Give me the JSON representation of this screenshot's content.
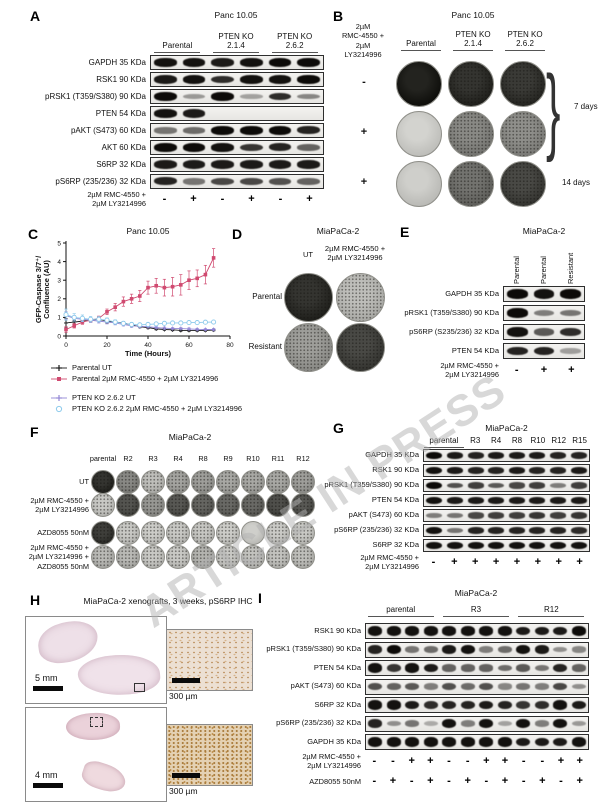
{
  "watermark": "ARTICLE IN PRESS",
  "panelA": {
    "label": "A",
    "title": "Panc 10.05",
    "group_headers": [
      {
        "lines": [
          "Parental"
        ],
        "span": 2,
        "underline": true
      },
      {
        "lines": [
          "PTEN KO",
          "2.1.4"
        ],
        "span": 2,
        "underline": true
      },
      {
        "lines": [
          "PTEN KO",
          "2.6.2"
        ],
        "span": 2,
        "underline": true
      }
    ],
    "rows": [
      {
        "label": "GAPDH 35 KDa",
        "bands": [
          0.9,
          0.9,
          0.85,
          0.9,
          0.95,
          1
        ]
      },
      {
        "label": "RSK1 90 KDa",
        "bands": [
          0.85,
          0.9,
          0.75,
          0.9,
          0.9,
          0.95
        ]
      },
      {
        "label": "pRSK1 (T359/S380) 90 KDa",
        "bands": [
          1,
          0.15,
          0.95,
          0.1,
          0.75,
          0.25
        ]
      },
      {
        "label": "PTEN 54 KDa",
        "bands": [
          0.9,
          0.85,
          0,
          0,
          0,
          0
        ]
      },
      {
        "label": "pAKT (S473) 60 KDa",
        "bands": [
          0.35,
          0.4,
          1,
          0.95,
          1,
          0.8
        ]
      },
      {
        "label": "AKT 60 KDa",
        "bands": [
          0.95,
          0.95,
          0.9,
          0.7,
          0.8,
          0.45
        ]
      },
      {
        "label": "S6RP 32 KDa",
        "bands": [
          0.85,
          0.85,
          0.85,
          0.85,
          0.85,
          0.85
        ]
      },
      {
        "label": "pS6RP (235/236) 32 KDa",
        "bands": [
          0.8,
          0.35,
          0.6,
          0.6,
          0.55,
          0.45
        ]
      }
    ],
    "treatment_rows": [
      {
        "label": "2µM RMC-4550 +\n2µM LY3214996",
        "signs": [
          "-",
          "+",
          "-",
          "+",
          "-",
          "+"
        ]
      }
    ]
  },
  "panelB": {
    "label": "B",
    "title": "Panc 10.05",
    "treatment_label": "2µM\nRMC-4550 +\n2µM\nLY3214996",
    "col_headers": [
      {
        "lines": [
          "Parental"
        ],
        "span": 1,
        "underline": true
      },
      {
        "lines": [
          "PTEN KO",
          "2.1.4"
        ],
        "span": 1,
        "underline": true
      },
      {
        "lines": [
          "PTEN KO",
          "2.6.2"
        ],
        "span": 1,
        "underline": true
      }
    ],
    "rows": [
      {
        "sign": "-",
        "shades": [
          0.93,
          0.85,
          0.82
        ]
      },
      {
        "sign": "+",
        "shades": [
          0.1,
          0.45,
          0.42
        ]
      },
      {
        "sign": "+",
        "shades": [
          0.12,
          0.55,
          0.75
        ]
      }
    ],
    "brackets": [
      {
        "text": "7 days"
      },
      {
        "text": "14 days"
      }
    ]
  },
  "panelC": {
    "label": "C",
    "title": "Panc 10.05"
  },
  "chart_data": {
    "type": "line",
    "title": "Panc 10.05",
    "xlabel": "Time (Hours)",
    "ylabel_lines": [
      "GFP-Caspase 3/7⁺/",
      "Confluence (AU)"
    ],
    "xlim": [
      0,
      80
    ],
    "ylim": [
      0,
      5
    ],
    "xticks": [
      0,
      20,
      40,
      60,
      80
    ],
    "yticks": [
      0,
      1,
      2,
      3,
      4,
      5
    ],
    "grid": false,
    "legend_position": "below",
    "x": [
      0,
      4,
      8,
      12,
      16,
      20,
      24,
      28,
      32,
      36,
      40,
      44,
      48,
      52,
      56,
      60,
      64,
      68,
      72
    ],
    "series": [
      {
        "name": "Parental UT",
        "color": "#1a1a1a",
        "marker": "plus",
        "values": [
          0.7,
          0.75,
          0.8,
          0.85,
          0.9,
          0.8,
          0.75,
          0.7,
          0.6,
          0.5,
          0.45,
          0.38,
          0.35,
          0.33,
          0.3,
          0.3,
          0.3,
          0.3,
          0.32
        ],
        "err": [
          0.25,
          0.1,
          0.1,
          0.1,
          0.1,
          0.1,
          0.08,
          0.08,
          0.08,
          0.06,
          0.06,
          0.05,
          0.05,
          0.05,
          0.05,
          0.05,
          0.05,
          0.05,
          0.05
        ]
      },
      {
        "name": "Parental 2µM RMC-4550 + 2µM LY3214996",
        "color": "#d04a70",
        "marker": "square",
        "values": [
          0.35,
          0.55,
          0.75,
          0.85,
          0.95,
          1.3,
          1.55,
          1.85,
          2.0,
          2.15,
          2.6,
          2.7,
          2.6,
          2.65,
          2.75,
          3.0,
          3.1,
          3.3,
          4.2
        ],
        "err": [
          0.15,
          0.12,
          0.12,
          0.12,
          0.12,
          0.15,
          0.2,
          0.25,
          0.25,
          0.3,
          0.35,
          0.4,
          0.45,
          0.5,
          0.55,
          0.5,
          0.45,
          0.5,
          0.5
        ]
      },
      {
        "name": "PTEN KO 2.6.2 UT",
        "color": "#9287d6",
        "marker": "plus",
        "values": [
          1.1,
          0.95,
          0.9,
          0.85,
          0.8,
          0.75,
          0.7,
          0.62,
          0.55,
          0.52,
          0.5,
          0.45,
          0.42,
          0.4,
          0.4,
          0.38,
          0.36,
          0.35,
          0.35
        ],
        "err": [
          0.2,
          0.15,
          0.12,
          0.12,
          0.1,
          0.1,
          0.1,
          0.08,
          0.08,
          0.08,
          0.06,
          0.06,
          0.06,
          0.05,
          0.05,
          0.05,
          0.05,
          0.05,
          0.05
        ]
      },
      {
        "name": "PTEN KO 2.6.2 2µM RMC-4550 + 2µM LY3214996",
        "color": "#8ecbec",
        "marker": "circle-open",
        "values": [
          1.15,
          1.0,
          0.95,
          0.9,
          0.9,
          0.85,
          0.75,
          0.68,
          0.62,
          0.6,
          0.62,
          0.65,
          0.68,
          0.7,
          0.7,
          0.72,
          0.72,
          0.74,
          0.75
        ],
        "err": [
          0.3,
          0.2,
          0.18,
          0.15,
          0.15,
          0.12,
          0.12,
          0.1,
          0.1,
          0.08,
          0.08,
          0.08,
          0.08,
          0.06,
          0.06,
          0.06,
          0.06,
          0.06,
          0.06
        ]
      }
    ]
  },
  "panelD": {
    "label": "D",
    "title": "MiaPaCa-2",
    "col_headers": [
      "UT",
      "2µM RMC-4550 +\n2µM LY3214996"
    ],
    "rows": [
      {
        "label": "Parental",
        "shades": [
          0.85,
          0.2
        ]
      },
      {
        "label": "Resistant",
        "shades": [
          0.35,
          0.75
        ]
      }
    ]
  },
  "panelE": {
    "label": "E",
    "title": "MiaPaCa-2",
    "lane_headers": [
      "Parental",
      "Parental",
      "Resistant"
    ],
    "rows": [
      {
        "label": "GAPDH 35 KDa",
        "bands": [
          0.95,
          0.9,
          0.95
        ]
      },
      {
        "label": "pRSK1 (T359/S380) 90 KDa",
        "bands": [
          0.95,
          0.3,
          0.35
        ]
      },
      {
        "label": "pS6RP (S235/236) 32 KDa",
        "bands": [
          0.9,
          0.5,
          0.75
        ]
      },
      {
        "label": "PTEN 54 KDa",
        "bands": [
          0.8,
          0.8,
          0.12
        ]
      }
    ],
    "treatment_rows": [
      {
        "label": "2µM RMC-4550 +\n2µM LY3214996",
        "signs": [
          "-",
          "+",
          "+"
        ]
      }
    ]
  },
  "panelF": {
    "label": "F",
    "title": "MiaPaCa-2",
    "col_headers": [
      "parental",
      "R2",
      "R3",
      "R4",
      "R8",
      "R9",
      "R10",
      "R11",
      "R12"
    ],
    "rows": [
      {
        "label": "UT",
        "shades": [
          0.85,
          0.45,
          0.2,
          0.32,
          0.35,
          0.3,
          0.3,
          0.3,
          0.35
        ]
      },
      {
        "label": "2µM RMC-4550 +\n2µM LY3214996",
        "shades": [
          0.15,
          0.7,
          0.38,
          0.68,
          0.62,
          0.6,
          0.6,
          0.72,
          0.68
        ]
      },
      {
        "label": "AZD8055 50nM",
        "shades": [
          0.8,
          0.15,
          0.13,
          0.15,
          0.16,
          0.13,
          0.12,
          0.14,
          0.15
        ]
      },
      {
        "label": "2µM RMC-4550 +\n2µM LY3214996 +\nAZD8055 50nM",
        "shades": [
          0.22,
          0.22,
          0.15,
          0.15,
          0.25,
          0.15,
          0.18,
          0.18,
          0.2
        ]
      }
    ]
  },
  "panelG": {
    "label": "G",
    "title": "MiaPaCa-2",
    "lane_headers": [
      {
        "lines": [
          "parental"
        ],
        "span": 2,
        "underline": true
      },
      {
        "lines": [
          "R3"
        ],
        "span": 1,
        "underline": false
      },
      {
        "lines": [
          "R4"
        ],
        "span": 1,
        "underline": false
      },
      {
        "lines": [
          "R8"
        ],
        "span": 1,
        "underline": false
      },
      {
        "lines": [
          "R10"
        ],
        "span": 1,
        "underline": false
      },
      {
        "lines": [
          "R12"
        ],
        "span": 1,
        "underline": false
      },
      {
        "lines": [
          "R15"
        ],
        "span": 1,
        "underline": false
      }
    ],
    "rows": [
      {
        "label": "GAPDH 35 KDa",
        "bands": [
          0.95,
          0.85,
          0.8,
          0.85,
          0.85,
          0.85,
          0.8,
          0.8
        ]
      },
      {
        "label": "RSK1 90 KDa",
        "bands": [
          0.9,
          0.85,
          0.8,
          0.8,
          0.85,
          0.8,
          0.8,
          0.85
        ]
      },
      {
        "label": "pRSK1 (T359/S380) 90 KDa",
        "bands": [
          1,
          0.55,
          0.65,
          0.5,
          0.6,
          0.65,
          0.3,
          0.65
        ]
      },
      {
        "label": "PTEN 54 KDa",
        "bands": [
          0.9,
          0.85,
          0.85,
          0.85,
          0.85,
          0.85,
          0.85,
          0.85
        ]
      },
      {
        "label": "pAKT (S473) 60 KDa",
        "bands": [
          0.3,
          0.35,
          0.6,
          0.65,
          0.65,
          0.7,
          0.65,
          0.7
        ]
      },
      {
        "label": "pS6RP (235/236) 32 KDa",
        "bands": [
          0.9,
          0.35,
          0.8,
          0.8,
          0.8,
          0.8,
          0.8,
          0.75
        ]
      },
      {
        "label": "S6RP 32 KDa",
        "bands": [
          0.9,
          0.9,
          0.9,
          0.9,
          0.9,
          0.9,
          0.9,
          0.9
        ]
      }
    ],
    "treatment_rows": [
      {
        "label": "2µM RMC-4550 +\n2µM LY3214996",
        "signs": [
          "-",
          "+",
          "+",
          "+",
          "+",
          "+",
          "+",
          "+"
        ]
      }
    ]
  },
  "panelH": {
    "label": "H",
    "title": "MiaPaCa-2 xenografts, 3 weeks, pS6RP IHC",
    "images": [
      {
        "scale_bar": "5 mm",
        "inset_scale_bar": "300 µm"
      },
      {
        "scale_bar": "4 mm",
        "inset_scale_bar": "300 µm"
      }
    ]
  },
  "panelI": {
    "label": "I",
    "title": "MiaPaCa-2",
    "group_headers": [
      {
        "lines": [
          "parental"
        ],
        "span": 4,
        "underline": true
      },
      {
        "lines": [
          "R3"
        ],
        "span": 4,
        "underline": true
      },
      {
        "lines": [
          "R12"
        ],
        "span": 4,
        "underline": true
      }
    ],
    "rows": [
      {
        "label": "RSK1 90 KDa",
        "bands": [
          0.9,
          0.9,
          0.9,
          0.9,
          0.9,
          0.9,
          0.9,
          0.9,
          0.85,
          0.85,
          0.85,
          0.95
        ]
      },
      {
        "label": "pRSK1 (T359/S380) 90 KDa",
        "bands": [
          0.8,
          0.95,
          0.35,
          0.4,
          0.85,
          0.9,
          0.3,
          0.4,
          0.9,
          0.85,
          0.2,
          0.25
        ]
      },
      {
        "label": "PTEN 54 KDa",
        "bands": [
          0.9,
          0.7,
          0.9,
          0.85,
          0.45,
          0.45,
          0.45,
          0.4,
          0.5,
          0.35,
          0.8,
          0.45
        ]
      },
      {
        "label": "pAKT (S473) 60 KDa",
        "bands": [
          0.55,
          0.45,
          0.5,
          0.3,
          0.55,
          0.4,
          0.55,
          0.25,
          0.35,
          0.3,
          0.6,
          0.2
        ]
      },
      {
        "label": "S6RP 32 KDa",
        "bands": [
          0.9,
          0.9,
          0.85,
          0.75,
          0.8,
          0.8,
          0.85,
          0.8,
          0.7,
          0.75,
          0.9,
          0.85
        ]
      },
      {
        "label": "pS6RP (235/236) 32 KDa",
        "bands": [
          0.8,
          0.2,
          0.35,
          0.05,
          0.9,
          0.3,
          0.9,
          0.1,
          0.9,
          0.3,
          0.9,
          0.15
        ]
      },
      {
        "label": "GAPDH 35 KDa",
        "bands": [
          0.9,
          0.9,
          0.9,
          0.9,
          0.9,
          0.9,
          0.9,
          0.9,
          0.85,
          0.85,
          0.85,
          0.9
        ]
      }
    ],
    "treatment_rows": [
      {
        "label": "2µM RMC-4550 +\n2µM LY3214996",
        "signs": [
          "-",
          "-",
          "+",
          "+",
          "-",
          "-",
          "+",
          "+",
          "-",
          "-",
          "+",
          "+"
        ]
      },
      {
        "label": "AZD8055 50nM",
        "signs": [
          "-",
          "+",
          "-",
          "+",
          "-",
          "+",
          "-",
          "+",
          "-",
          "+",
          "-",
          "+"
        ]
      }
    ]
  }
}
